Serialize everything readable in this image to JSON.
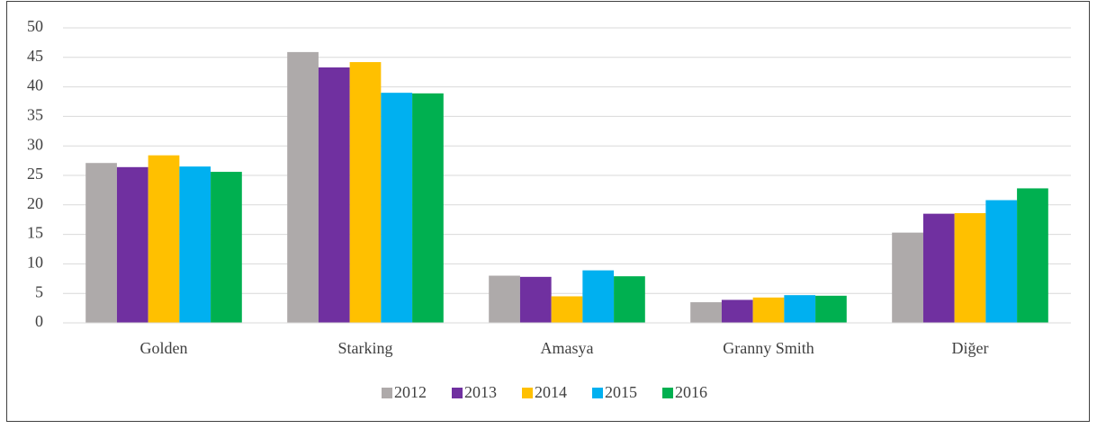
{
  "chart_data": {
    "type": "bar",
    "categories": [
      "Golden",
      "Starking",
      "Amasya",
      "Granny Smith",
      "Diğer"
    ],
    "series": [
      {
        "name": "2012",
        "color": "#aeaaaa",
        "values": [
          27.1,
          45.9,
          8.0,
          3.5,
          15.3
        ]
      },
      {
        "name": "2013",
        "color": "#7030a0",
        "values": [
          26.4,
          43.3,
          7.8,
          3.9,
          18.5
        ]
      },
      {
        "name": "2014",
        "color": "#ffc000",
        "values": [
          28.4,
          44.2,
          4.5,
          4.3,
          18.6
        ]
      },
      {
        "name": "2015",
        "color": "#00b0f0",
        "values": [
          26.5,
          39.0,
          8.9,
          4.7,
          20.8
        ]
      },
      {
        "name": "2016",
        "color": "#00b050",
        "values": [
          25.6,
          38.9,
          7.9,
          4.6,
          22.8
        ]
      }
    ],
    "ylim": [
      0,
      50
    ],
    "yticks": [
      0,
      5,
      10,
      15,
      20,
      25,
      30,
      35,
      40,
      45,
      50
    ],
    "grid": true,
    "legend": "bottom"
  }
}
